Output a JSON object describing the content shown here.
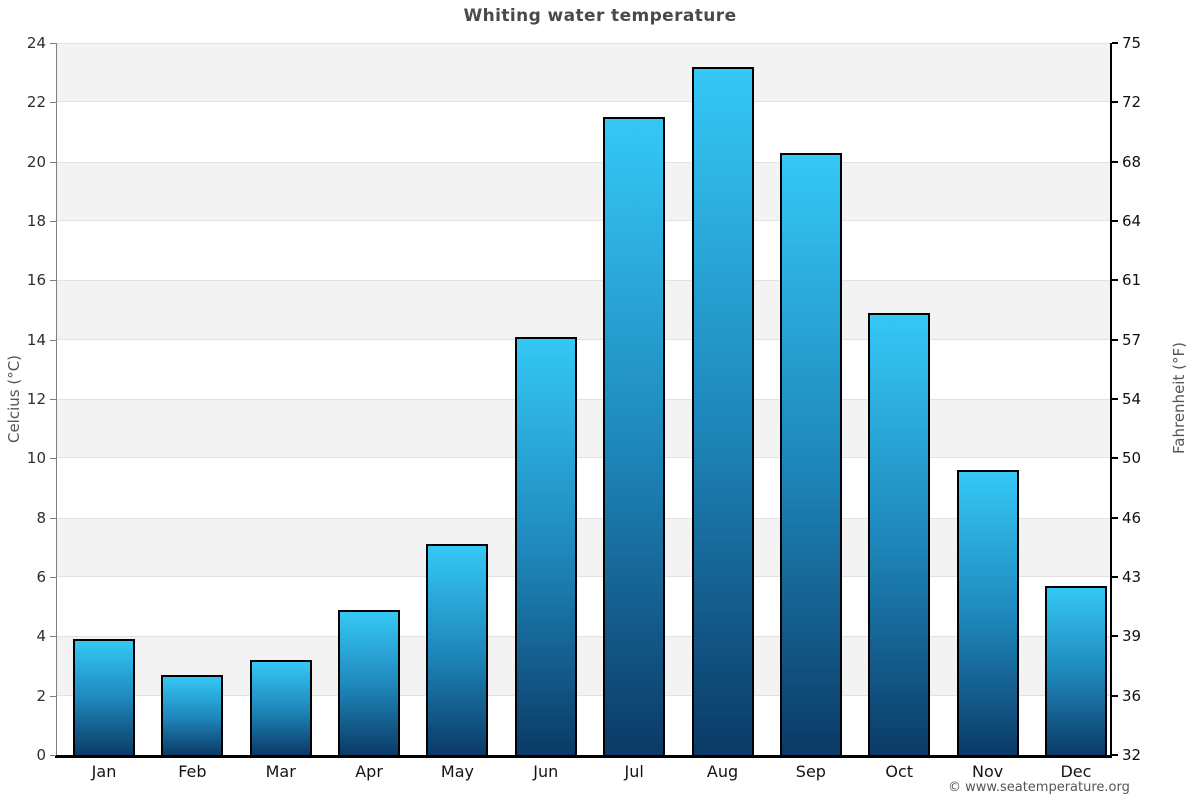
{
  "title": "Whiting water temperature",
  "footer": "© www.seatemperature.org",
  "chart_data": {
    "type": "bar",
    "title": "Whiting water temperature",
    "categories": [
      "Jan",
      "Feb",
      "Mar",
      "Apr",
      "May",
      "Jun",
      "Jul",
      "Aug",
      "Sep",
      "Oct",
      "Nov",
      "Dec"
    ],
    "values": [
      3.9,
      2.7,
      3.2,
      4.9,
      7.1,
      14.1,
      21.5,
      23.2,
      20.3,
      14.9,
      9.6,
      5.7
    ],
    "xlabel": "",
    "ylabel_left": "Celcius (°C)",
    "ylabel_right": "Fahrenheit (°F)",
    "ylim": [
      0,
      24
    ],
    "yticks_left": [
      0,
      2,
      4,
      6,
      8,
      10,
      12,
      14,
      16,
      18,
      20,
      22,
      24
    ],
    "yticks_right_labels": [
      "32",
      "36",
      "39",
      "43",
      "46",
      "50",
      "54",
      "57",
      "61",
      "64",
      "68",
      "72",
      "75"
    ],
    "legend": "none",
    "grid": "alternating horizontal bands, 2°C wide",
    "colors": {
      "bar_gradient_top": "#35c8f5",
      "bar_gradient_mid": "#1e86ba",
      "bar_gradient_bottom": "#0b3a66",
      "bar_border": "#000000",
      "band_gray": "#f3f3f3",
      "band_line": "#e2e2e2",
      "axis_black": "#000000",
      "left_spine_gray": "#808080",
      "title_color": "#4a4a4a",
      "tick_label_color": "#2e2e2e",
      "axis_title_color": "#555555",
      "footer_color": "#555555"
    }
  }
}
